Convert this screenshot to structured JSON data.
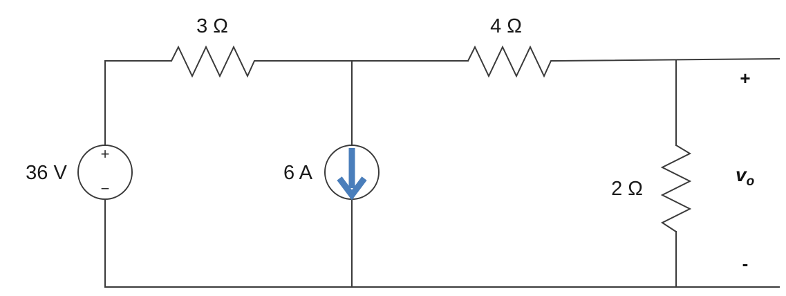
{
  "components": {
    "voltage_source": {
      "label": "36 V",
      "plus": "+",
      "minus": "−"
    },
    "current_source": {
      "label": "6 A",
      "arrow_color": "#4a7ebb"
    },
    "r_left": {
      "label": "3 Ω"
    },
    "r_mid": {
      "label": "4 Ω"
    },
    "r_right": {
      "label": "2 Ω"
    }
  },
  "output": {
    "symbol": "v",
    "subscript": "o",
    "plus": "+",
    "minus": "-"
  }
}
